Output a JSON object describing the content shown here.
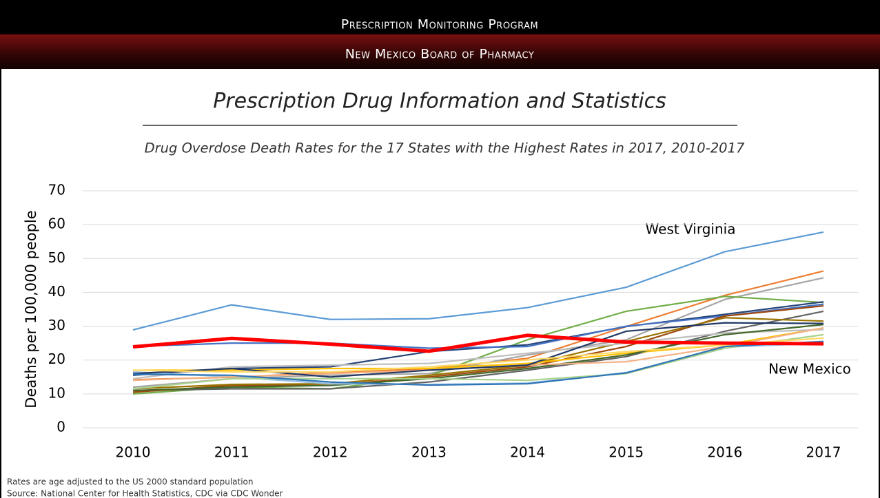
{
  "header": {
    "program": "Prescription Monitoring Program",
    "board": "New Mexico Board of Pharmacy"
  },
  "chart_data": {
    "type": "line",
    "title": "Prescription Drug Information and Statistics",
    "subtitle": "Drug Overdose Death Rates for the 17 States with the Highest Rates in 2017, 2010-2017",
    "y_label": "Deaths per 100,000 people",
    "categories": [
      "2010",
      "2011",
      "2012",
      "2013",
      "2014",
      "2015",
      "2016",
      "2017"
    ],
    "ylim": [
      0,
      70
    ],
    "yticks": [
      0,
      10,
      20,
      30,
      40,
      50,
      60,
      70
    ],
    "grid": true,
    "series": [
      {
        "color": "#ed7d31",
        "values": [
          14.2,
          14.9,
          16.3,
          17.4,
          20.5,
          29.9,
          39.1,
          46.3
        ]
      },
      {
        "color": "#a5a5a5",
        "values": [
          12.0,
          14.5,
          15.5,
          16.0,
          21.5,
          26.0,
          37.9,
          44.3
        ]
      },
      {
        "color": "#70ad47",
        "values": [
          10.0,
          12.0,
          11.5,
          15.3,
          26.0,
          34.4,
          38.8,
          37.0
        ]
      },
      {
        "color": "#264478",
        "values": [
          15.5,
          17.5,
          18.0,
          22.5,
          24.5,
          29.9,
          33.5,
          37.2
        ]
      },
      {
        "color": "#4472c4",
        "values": [
          24.0,
          25.0,
          25.0,
          23.5,
          24.0,
          30.0,
          33.0,
          36.5
        ]
      },
      {
        "color": "#636363",
        "values": [
          11.0,
          11.5,
          11.5,
          13.5,
          17.0,
          21.0,
          28.5,
          34.4
        ]
      },
      {
        "color": "#9e480e",
        "values": [
          10.5,
          12.5,
          12.5,
          15.0,
          18.0,
          24.0,
          33.0,
          36.0
        ]
      },
      {
        "color": "#997300",
        "values": [
          11.5,
          12.8,
          13.0,
          15.5,
          18.5,
          25.5,
          32.5,
          31.5
        ]
      },
      {
        "color": "#ffc000",
        "values": [
          17.0,
          17.0,
          17.5,
          17.5,
          19.0,
          22.0,
          24.5,
          29.5
        ]
      },
      {
        "color": "#bfbfbf",
        "values": [
          14.5,
          18.0,
          18.5,
          19.0,
          22.0,
          25.0,
          28.0,
          29.0
        ]
      },
      {
        "color": "#43682b",
        "values": [
          11.0,
          12.0,
          12.5,
          14.5,
          17.5,
          21.5,
          27.5,
          30.5
        ]
      },
      {
        "color": "#9dc3e6",
        "values": [
          16.5,
          15.0,
          13.0,
          12.8,
          13.2,
          16.3,
          23.8,
          25.0
        ]
      },
      {
        "color": "#a9d18e",
        "values": [
          11.5,
          14.5,
          14.5,
          14.5,
          14.0,
          16.0,
          23.5,
          27.5
        ]
      },
      {
        "color": "#f4b183",
        "values": [
          14.0,
          15.0,
          16.0,
          17.0,
          18.5,
          19.5,
          24.0,
          29.5
        ]
      },
      {
        "color": "#203864",
        "values": [
          16.0,
          17.5,
          15.0,
          17.0,
          18.5,
          28.5,
          31.0,
          30.8
        ]
      },
      {
        "color": "#2e75b6",
        "values": [
          15.8,
          15.5,
          13.5,
          12.6,
          13.0,
          16.2,
          24.0,
          25.5
        ]
      },
      {
        "color": "#ffd966",
        "values": [
          17.0,
          16.5,
          16.5,
          18.0,
          20.0,
          22.5,
          24.5,
          26.5
        ]
      },
      {
        "color": "#5b9bd5",
        "values": [
          28.9,
          36.3,
          32.0,
          32.2,
          35.5,
          41.5,
          52.0,
          57.8
        ]
      },
      {
        "color": "#ff0000",
        "width": 5,
        "values": [
          23.9,
          26.4,
          24.7,
          22.6,
          27.3,
          25.3,
          25.0,
          24.8
        ]
      }
    ],
    "annotations": [
      {
        "text": "West Virginia"
      },
      {
        "text": "New Mexico"
      }
    ]
  },
  "footer": {
    "note": "Rates are age adjusted to the US 2000 standard population",
    "source": "Source:  National Center for Health Statistics, CDC via CDC Wonder"
  }
}
